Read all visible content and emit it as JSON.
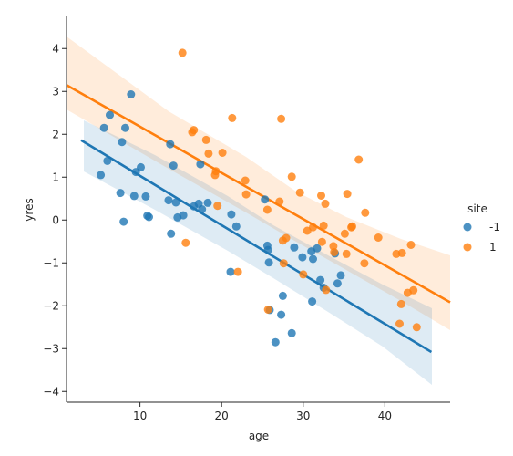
{
  "chart_data": {
    "type": "scatter",
    "xlabel": "age",
    "ylabel": "yres",
    "xlim": [
      1,
      48
    ],
    "ylim": [
      -4.25,
      4.75
    ],
    "xticks": [
      10,
      20,
      30,
      40
    ],
    "yticks": [
      -4,
      -3,
      -2,
      -1,
      0,
      1,
      2,
      3,
      4
    ],
    "legend": {
      "title": "site",
      "position": "right",
      "entries": [
        "-1",
        "1"
      ]
    },
    "series": [
      {
        "name": "-1",
        "color": "#1f77b4",
        "points": [
          [
            5.2,
            1.05
          ],
          [
            5.6,
            2.15
          ],
          [
            6.0,
            1.38
          ],
          [
            6.3,
            2.45
          ],
          [
            7.6,
            0.63
          ],
          [
            7.8,
            1.82
          ],
          [
            8.0,
            -0.04
          ],
          [
            8.2,
            2.15
          ],
          [
            8.9,
            2.93
          ],
          [
            9.3,
            0.56
          ],
          [
            9.5,
            1.12
          ],
          [
            10.1,
            1.23
          ],
          [
            10.7,
            0.55
          ],
          [
            10.9,
            0.1
          ],
          [
            11.1,
            0.07
          ],
          [
            13.5,
            0.46
          ],
          [
            13.7,
            1.77
          ],
          [
            13.8,
            -0.32
          ],
          [
            14.1,
            1.27
          ],
          [
            14.4,
            0.41
          ],
          [
            14.6,
            0.06
          ],
          [
            15.3,
            0.11
          ],
          [
            16.6,
            0.32
          ],
          [
            17.2,
            0.38
          ],
          [
            17.4,
            1.3
          ],
          [
            17.6,
            0.25
          ],
          [
            18.3,
            0.4
          ],
          [
            21.1,
            -1.21
          ],
          [
            21.2,
            0.13
          ],
          [
            21.8,
            -0.15
          ],
          [
            25.3,
            0.48
          ],
          [
            25.6,
            -0.6
          ],
          [
            25.7,
            -0.7
          ],
          [
            25.8,
            -0.99
          ],
          [
            25.9,
            -2.1
          ],
          [
            26.6,
            -2.85
          ],
          [
            27.3,
            -2.21
          ],
          [
            27.5,
            -1.77
          ],
          [
            28.6,
            -2.64
          ],
          [
            28.9,
            -0.64
          ],
          [
            29.9,
            -0.87
          ],
          [
            31.0,
            -0.73
          ],
          [
            31.1,
            -1.9
          ],
          [
            31.2,
            -0.91
          ],
          [
            31.7,
            -0.66
          ],
          [
            32.1,
            -1.4
          ],
          [
            32.5,
            -1.58
          ],
          [
            33.9,
            -0.78
          ],
          [
            34.2,
            -1.48
          ],
          [
            34.6,
            -1.29
          ]
        ],
        "regression_line": {
          "x": [
            2.8,
            45.7
          ],
          "y": [
            1.86,
            -3.08
          ]
        }
      },
      {
        "name": "1",
        "color": "#ff7f0e",
        "points": [
          [
            15.2,
            3.9
          ],
          [
            15.6,
            -0.53
          ],
          [
            16.4,
            2.05
          ],
          [
            16.6,
            2.1
          ],
          [
            18.1,
            1.87
          ],
          [
            18.4,
            1.55
          ],
          [
            19.2,
            1.05
          ],
          [
            19.3,
            1.14
          ],
          [
            19.5,
            0.33
          ],
          [
            20.1,
            1.57
          ],
          [
            21.3,
            2.38
          ],
          [
            22.0,
            -1.21
          ],
          [
            22.9,
            0.92
          ],
          [
            23.0,
            0.6
          ],
          [
            25.6,
            0.24
          ],
          [
            25.7,
            -2.09
          ],
          [
            27.1,
            0.43
          ],
          [
            27.3,
            2.36
          ],
          [
            27.5,
            -0.48
          ],
          [
            27.6,
            -1.01
          ],
          [
            27.9,
            -0.42
          ],
          [
            28.6,
            1.01
          ],
          [
            29.6,
            0.64
          ],
          [
            30.0,
            -1.27
          ],
          [
            30.5,
            -0.25
          ],
          [
            31.2,
            -0.17
          ],
          [
            32.2,
            0.57
          ],
          [
            32.3,
            -0.51
          ],
          [
            32.5,
            -0.13
          ],
          [
            32.7,
            0.38
          ],
          [
            32.8,
            -1.63
          ],
          [
            33.7,
            -0.61
          ],
          [
            33.8,
            -0.75
          ],
          [
            35.1,
            -0.32
          ],
          [
            35.3,
            -0.79
          ],
          [
            35.4,
            0.61
          ],
          [
            35.9,
            -0.17
          ],
          [
            36.0,
            -0.15
          ],
          [
            36.8,
            1.41
          ],
          [
            37.5,
            -1.01
          ],
          [
            37.6,
            0.17
          ],
          [
            39.2,
            -0.41
          ],
          [
            41.4,
            -0.79
          ],
          [
            41.8,
            -2.42
          ],
          [
            42.0,
            -1.96
          ],
          [
            42.1,
            -0.77
          ],
          [
            42.8,
            -1.7
          ],
          [
            43.2,
            -0.58
          ],
          [
            43.5,
            -1.64
          ],
          [
            43.9,
            -2.5
          ]
        ],
        "regression_line": {
          "x": [
            1.0,
            48.0
          ],
          "y": [
            3.15,
            -1.92
          ]
        }
      }
    ]
  }
}
